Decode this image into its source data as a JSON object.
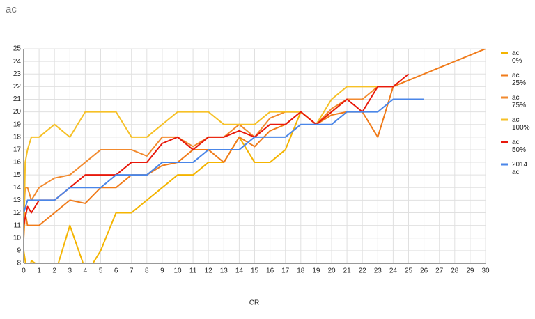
{
  "chart_data": {
    "type": "line",
    "title": "ac",
    "x_label": "CR",
    "xlim": [
      0,
      30
    ],
    "ylim": [
      8,
      25
    ],
    "xticks": [
      0,
      1,
      2,
      3,
      4,
      5,
      6,
      7,
      8,
      9,
      10,
      11,
      12,
      13,
      14,
      15,
      16,
      17,
      18,
      19,
      20,
      21,
      22,
      23,
      24,
      25,
      26,
      27,
      28,
      29,
      30
    ],
    "yticks": [
      8,
      9,
      10,
      11,
      12,
      13,
      14,
      15,
      16,
      17,
      18,
      19,
      20,
      21,
      22,
      23,
      24,
      25
    ],
    "grid": true,
    "legend": "right",
    "series": [
      {
        "name": "ac 0%",
        "color": "#f4b400",
        "x": [
          0,
          0.25,
          0.5,
          2,
          3,
          4,
          4.5,
          5,
          6,
          7,
          8,
          9,
          10,
          11,
          12,
          13,
          14,
          15,
          16,
          17,
          18,
          19,
          20,
          21,
          22
        ],
        "values": [
          9,
          7,
          8.2,
          7,
          11,
          7.5,
          8,
          9,
          12,
          12,
          13,
          14,
          15,
          15,
          16,
          16,
          18,
          16,
          16,
          17,
          20,
          19,
          20,
          21,
          21
        ]
      },
      {
        "name": "ac 25%",
        "color": "#f07b1a",
        "x": [
          0,
          0.1,
          0.25,
          1,
          2,
          3,
          4,
          5,
          6,
          7,
          8,
          9,
          10,
          11,
          12,
          13,
          14,
          15,
          16,
          17,
          18,
          19,
          20,
          21,
          22,
          23,
          24,
          30
        ],
        "values": [
          10,
          12,
          11,
          11,
          12,
          13,
          12.75,
          14,
          14,
          15,
          15,
          15.75,
          16,
          17,
          17,
          16,
          18,
          17.25,
          18.5,
          19,
          20,
          19,
          19.75,
          20,
          20,
          18,
          22,
          25
        ]
      },
      {
        "name": "ac 75%",
        "color": "#f28a2e",
        "x": [
          0,
          0.1,
          0.25,
          0.5,
          1,
          2,
          3,
          4,
          5,
          6,
          7,
          8,
          9,
          10,
          11,
          12,
          13,
          14,
          15,
          16,
          17,
          18,
          19,
          20,
          21,
          22,
          23,
          24
        ],
        "values": [
          12,
          14,
          14,
          13,
          14,
          14.75,
          15,
          16,
          17,
          17,
          17,
          16.5,
          18,
          18,
          17.25,
          18,
          18,
          19,
          18,
          19.5,
          20,
          20,
          19,
          20.25,
          21,
          21,
          22,
          22
        ]
      },
      {
        "name": "ac 100%",
        "color": "#f6c026",
        "x": [
          0,
          0.1,
          0.25,
          0.5,
          1,
          2,
          3,
          4,
          5,
          6,
          7,
          8,
          9,
          10,
          11,
          12,
          13,
          14,
          15,
          16,
          17,
          18,
          19,
          20,
          21,
          22,
          23
        ],
        "values": [
          10,
          16,
          17,
          18,
          18,
          19,
          18,
          20,
          20,
          20,
          18,
          18,
          19,
          20,
          20,
          20,
          19,
          19,
          19,
          20,
          20,
          20,
          19,
          21,
          22,
          22,
          22
        ]
      },
      {
        "name": "ac 50%",
        "color": "#e8190c",
        "x": [
          0,
          0.25,
          0.5,
          1,
          2,
          3,
          4,
          5,
          6,
          7,
          8,
          9,
          10,
          11,
          12,
          13,
          14,
          15,
          16,
          17,
          18,
          19,
          20,
          21,
          22,
          23,
          24,
          25
        ],
        "values": [
          11,
          12.5,
          12,
          13,
          13,
          14,
          15,
          15,
          15,
          16,
          16,
          17.5,
          18,
          17,
          18,
          18,
          18.5,
          18,
          19,
          19,
          20,
          19,
          20,
          21,
          20,
          22,
          22,
          23
        ]
      },
      {
        "name": "2014 ac",
        "color": "#4a86e8",
        "x": [
          0,
          0.25,
          1,
          2,
          3,
          4,
          5,
          6,
          7,
          8,
          9,
          10,
          11,
          12,
          13,
          14,
          15,
          16,
          17,
          18,
          19,
          20,
          21,
          22,
          23,
          24,
          25,
          26
        ],
        "values": [
          12,
          13,
          13,
          13,
          14,
          14,
          14,
          15,
          15,
          15,
          16,
          16,
          16,
          17,
          17,
          17,
          18,
          18,
          18,
          19,
          19,
          19,
          20,
          20,
          20,
          21,
          21,
          21
        ]
      }
    ]
  }
}
